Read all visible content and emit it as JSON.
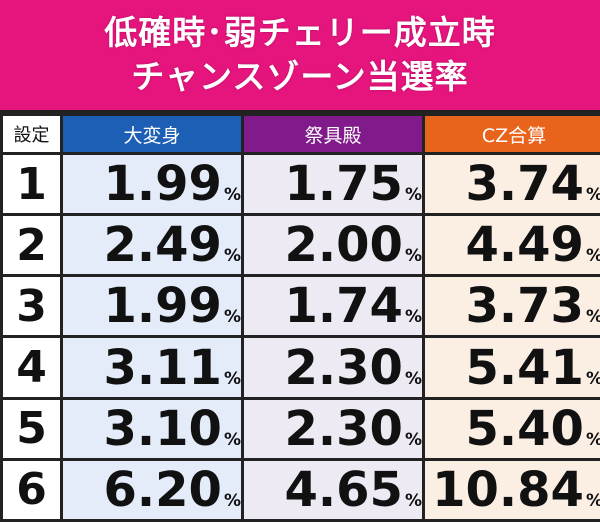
{
  "title": {
    "line1": "低確時･弱チェリー成立時",
    "line2": "チャンスゾーン当選率"
  },
  "table": {
    "headers": [
      "設定",
      "大変身",
      "祭具殿",
      "CZ合算"
    ],
    "unit": "%",
    "rows": [
      {
        "setting": "1",
        "values": [
          "1.99",
          "1.75",
          "3.74"
        ]
      },
      {
        "setting": "2",
        "values": [
          "2.49",
          "2.00",
          "4.49"
        ]
      },
      {
        "setting": "3",
        "values": [
          "1.99",
          "1.74",
          "3.73"
        ]
      },
      {
        "setting": "4",
        "values": [
          "3.11",
          "2.30",
          "5.41"
        ]
      },
      {
        "setting": "5",
        "values": [
          "3.10",
          "2.30",
          "5.40"
        ]
      },
      {
        "setting": "6",
        "values": [
          "6.20",
          "4.65",
          "10.84"
        ]
      }
    ]
  },
  "colors": {
    "title_bg": "#e5157d",
    "header_daihenshin": "#1d5fb5",
    "header_saiguden": "#811a8a",
    "header_cz": "#e8641c",
    "cell_daihenshin": "#e4ecfa",
    "cell_saiguden": "#eeeaf4",
    "cell_cz": "#fbefe4"
  }
}
